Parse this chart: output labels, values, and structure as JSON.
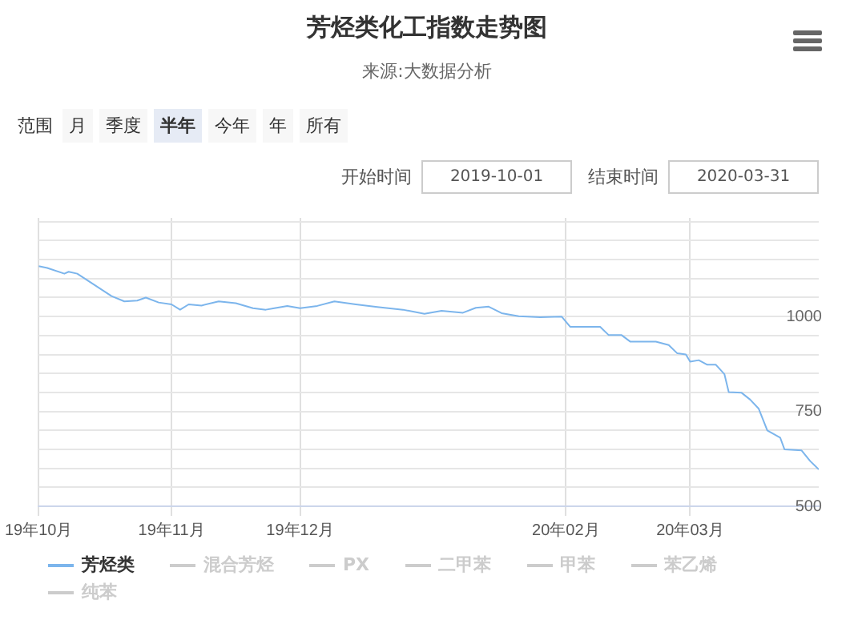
{
  "chart_data": {
    "type": "line",
    "title": "芳烃类化工指数走势图",
    "subtitle": "来源:大数据分析",
    "annotations": [
      "范围",
      "月",
      "季度",
      "半年",
      "今年",
      "年",
      "所有",
      "开始时间",
      "2019-10-01",
      "结束时间",
      "2020-03-31"
    ],
    "x": [
      "2019-10-01",
      "2019-10-03",
      "2019-10-07",
      "2019-10-08",
      "2019-10-10",
      "2019-10-13",
      "2019-10-18",
      "2019-10-21",
      "2019-10-24",
      "2019-10-26",
      "2019-10-29",
      "2019-11-01",
      "2019-11-03",
      "2019-11-05",
      "2019-11-08",
      "2019-11-12",
      "2019-11-16",
      "2019-11-20",
      "2019-11-23",
      "2019-11-25",
      "2019-11-28",
      "2019-12-01",
      "2019-12-05",
      "2019-12-09",
      "2019-12-14",
      "2019-12-19",
      "2019-12-25",
      "2019-12-30",
      "2020-01-03",
      "2020-01-08",
      "2020-01-11",
      "2020-01-14",
      "2020-01-17",
      "2020-01-21",
      "2020-01-26",
      "2020-01-31",
      "2020-02-02",
      "2020-02-09",
      "2020-02-11",
      "2020-02-14",
      "2020-02-16",
      "2020-02-22",
      "2020-02-25",
      "2020-02-27",
      "2020-02-29",
      "2020-03-01",
      "2020-03-03",
      "2020-03-05",
      "2020-03-07",
      "2020-03-09",
      "2020-03-10",
      "2020-03-13",
      "2020-03-15",
      "2020-03-17",
      "2020-03-19",
      "2020-03-22",
      "2020-03-23",
      "2020-03-27",
      "2020-03-29",
      "2020-03-31"
    ],
    "series": [
      {
        "name": "芳烃类",
        "color": "#7cb5ec",
        "values": [
          1133,
          1128,
          1113,
          1118,
          1113,
          1091,
          1054,
          1040,
          1042,
          1050,
          1037,
          1032,
          1018,
          1032,
          1029,
          1040,
          1035,
          1022,
          1018,
          1022,
          1028,
          1022,
          1028,
          1040,
          1032,
          1025,
          1018,
          1007,
          1015,
          1010,
          1023,
          1026,
          1009,
          1001,
          998,
          1000,
          973,
          973,
          951,
          951,
          934,
          934,
          925,
          903,
          900,
          881,
          885,
          873,
          873,
          848,
          801,
          799,
          781,
          757,
          700,
          681,
          650,
          647,
          619,
          597
        ]
      },
      {
        "name": "混合芳烃",
        "color": "#cccccc",
        "values": [
          null,
          null,
          null,
          null,
          null,
          null,
          null,
          null,
          null,
          null,
          null,
          null,
          null,
          null,
          null,
          null,
          null,
          null,
          null,
          null,
          null,
          null,
          null,
          null,
          null,
          null,
          null,
          null,
          null,
          null,
          null,
          null,
          null,
          null,
          null,
          null,
          null,
          null,
          null,
          null,
          null,
          null,
          null,
          null,
          null,
          null,
          null,
          null,
          null,
          null,
          null,
          null,
          null,
          null,
          null,
          null,
          null,
          null,
          null,
          null
        ]
      },
      {
        "name": "PX",
        "color": "#cccccc",
        "values": [
          null,
          null,
          null,
          null,
          null,
          null,
          null,
          null,
          null,
          null,
          null,
          null,
          null,
          null,
          null,
          null,
          null,
          null,
          null,
          null,
          null,
          null,
          null,
          null,
          null,
          null,
          null,
          null,
          null,
          null,
          null,
          null,
          null,
          null,
          null,
          null,
          null,
          null,
          null,
          null,
          null,
          null,
          null,
          null,
          null,
          null,
          null,
          null,
          null,
          null,
          null,
          null,
          null,
          null,
          null,
          null,
          null,
          null,
          null,
          null
        ]
      },
      {
        "name": "二甲苯",
        "color": "#cccccc",
        "values": [
          null,
          null,
          null,
          null,
          null,
          null,
          null,
          null,
          null,
          null,
          null,
          null,
          null,
          null,
          null,
          null,
          null,
          null,
          null,
          null,
          null,
          null,
          null,
          null,
          null,
          null,
          null,
          null,
          null,
          null,
          null,
          null,
          null,
          null,
          null,
          null,
          null,
          null,
          null,
          null,
          null,
          null,
          null,
          null,
          null,
          null,
          null,
          null,
          null,
          null,
          null,
          null,
          null,
          null,
          null,
          null,
          null,
          null,
          null,
          null
        ]
      },
      {
        "name": "甲苯",
        "color": "#cccccc",
        "values": [
          null,
          null,
          null,
          null,
          null,
          null,
          null,
          null,
          null,
          null,
          null,
          null,
          null,
          null,
          null,
          null,
          null,
          null,
          null,
          null,
          null,
          null,
          null,
          null,
          null,
          null,
          null,
          null,
          null,
          null,
          null,
          null,
          null,
          null,
          null,
          null,
          null,
          null,
          null,
          null,
          null,
          null,
          null,
          null,
          null,
          null,
          null,
          null,
          null,
          null,
          null,
          null,
          null,
          null,
          null,
          null,
          null,
          null,
          null,
          null
        ]
      },
      {
        "name": "苯乙烯",
        "color": "#cccccc",
        "values": [
          null,
          null,
          null,
          null,
          null,
          null,
          null,
          null,
          null,
          null,
          null,
          null,
          null,
          null,
          null,
          null,
          null,
          null,
          null,
          null,
          null,
          null,
          null,
          null,
          null,
          null,
          null,
          null,
          null,
          null,
          null,
          null,
          null,
          null,
          null,
          null,
          null,
          null,
          null,
          null,
          null,
          null,
          null,
          null,
          null,
          null,
          null,
          null,
          null,
          null,
          null,
          null,
          null,
          null,
          null,
          null,
          null,
          null,
          null,
          null
        ]
      },
      {
        "name": "纯苯",
        "color": "#cccccc",
        "values": [
          null,
          null,
          null,
          null,
          null,
          null,
          null,
          null,
          null,
          null,
          null,
          null,
          null,
          null,
          null,
          null,
          null,
          null,
          null,
          null,
          null,
          null,
          null,
          null,
          null,
          null,
          null,
          null,
          null,
          null,
          null,
          null,
          null,
          null,
          null,
          null,
          null,
          null,
          null,
          null,
          null,
          null,
          null,
          null,
          null,
          null,
          null,
          null,
          null,
          null,
          null,
          null,
          null,
          null,
          null,
          null,
          null,
          null,
          null,
          null
        ]
      }
    ],
    "xlim": [
      "2019-10-01",
      "2020-03-31"
    ],
    "xticks": [
      {
        "value": "2019-10-01",
        "label": "19年10月"
      },
      {
        "value": "2019-11-01",
        "label": "19年11月"
      },
      {
        "value": "2019-12-01",
        "label": "19年12月"
      },
      {
        "value": "2020-02-01",
        "label": "20年02月"
      },
      {
        "value": "2020-03-01",
        "label": "20年03月"
      }
    ],
    "ylim": [
      500,
      1260
    ],
    "yticks": [
      500,
      {
        "value": 550,
        "label": null
      },
      {
        "value": 600,
        "label": null
      },
      {
        "value": 650,
        "label": null
      },
      {
        "value": 700,
        "label": null
      },
      750,
      {
        "value": 800,
        "label": null
      },
      {
        "value": 850,
        "label": null
      },
      {
        "value": 900,
        "label": null
      },
      {
        "value": 950,
        "label": null
      },
      1000,
      {
        "value": 1050,
        "label": null
      },
      {
        "value": 1100,
        "label": null
      },
      {
        "value": 1150,
        "label": null
      },
      {
        "value": 1200,
        "label": null
      },
      {
        "value": 1250,
        "label": null
      }
    ],
    "grid": true,
    "legend": "bottom",
    "marker": "none",
    "line_style": "solid"
  }
}
